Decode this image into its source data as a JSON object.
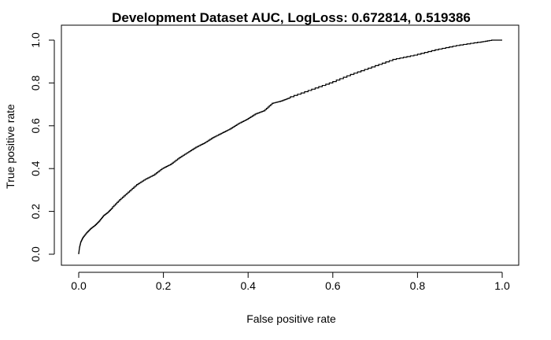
{
  "chart_data": {
    "type": "line",
    "title": "Development Dataset AUC, LogLoss: 0.672814, 0.519386",
    "xlabel": "False positive rate",
    "ylabel": "True positive rate",
    "xlim": [
      0,
      1
    ],
    "ylim": [
      0,
      1
    ],
    "grid": false,
    "x_ticks": [
      "0.0",
      "0.2",
      "0.4",
      "0.6",
      "0.8",
      "1.0"
    ],
    "y_ticks": [
      "0.0",
      "0.2",
      "0.4",
      "0.6",
      "0.8",
      "1.0"
    ],
    "series": [
      {
        "color": "#000000",
        "points": [
          [
            0.0,
            0.0
          ],
          [
            0.002,
            0.03
          ],
          [
            0.005,
            0.055
          ],
          [
            0.01,
            0.075
          ],
          [
            0.02,
            0.1
          ],
          [
            0.03,
            0.12
          ],
          [
            0.04,
            0.135
          ],
          [
            0.05,
            0.155
          ],
          [
            0.06,
            0.18
          ],
          [
            0.07,
            0.195
          ],
          [
            0.08,
            0.215
          ],
          [
            0.1,
            0.255
          ],
          [
            0.12,
            0.29
          ],
          [
            0.14,
            0.325
          ],
          [
            0.16,
            0.35
          ],
          [
            0.18,
            0.37
          ],
          [
            0.2,
            0.4
          ],
          [
            0.22,
            0.42
          ],
          [
            0.24,
            0.45
          ],
          [
            0.26,
            0.475
          ],
          [
            0.28,
            0.5
          ],
          [
            0.3,
            0.52
          ],
          [
            0.32,
            0.545
          ],
          [
            0.34,
            0.565
          ],
          [
            0.36,
            0.585
          ],
          [
            0.38,
            0.61
          ],
          [
            0.4,
            0.63
          ],
          [
            0.42,
            0.655
          ],
          [
            0.44,
            0.67
          ],
          [
            0.46,
            0.705
          ],
          [
            0.48,
            0.715
          ],
          [
            0.5,
            0.73
          ],
          [
            0.55,
            0.765
          ],
          [
            0.6,
            0.8
          ],
          [
            0.65,
            0.84
          ],
          [
            0.7,
            0.875
          ],
          [
            0.75,
            0.91
          ],
          [
            0.8,
            0.93
          ],
          [
            0.85,
            0.955
          ],
          [
            0.9,
            0.975
          ],
          [
            0.95,
            0.99
          ],
          [
            0.98,
            1.0
          ],
          [
            1.0,
            1.0
          ]
        ]
      }
    ]
  }
}
